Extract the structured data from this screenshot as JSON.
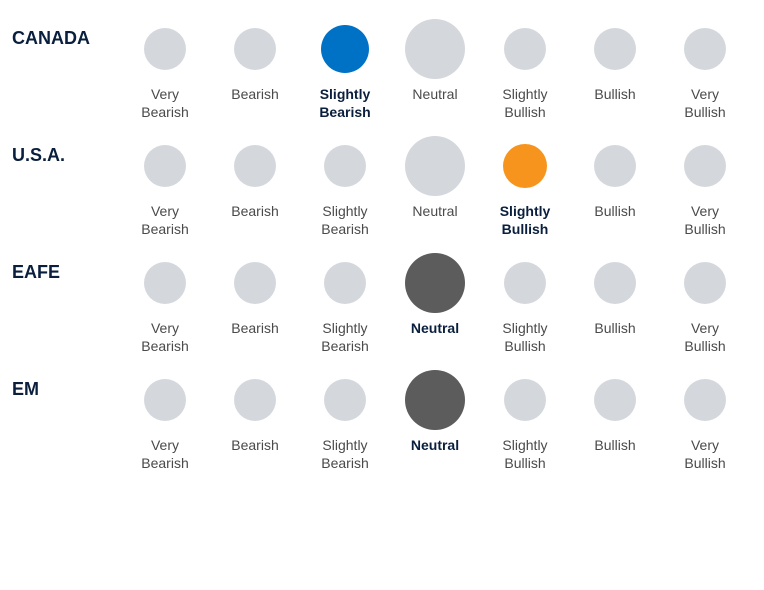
{
  "type": "dot-matrix-sentiment-chart",
  "colors": {
    "inactive": "#d4d8dd",
    "label_normal": "#4a4a4a",
    "label_selected": "#0a1f3d",
    "row_label": "#0a1f3d",
    "background": "#ffffff"
  },
  "dot_sizes": {
    "small": 42,
    "neutral_large": 60,
    "selected": 48,
    "selected_large": 60
  },
  "font_sizes": {
    "row_label": 18,
    "cell_label": 14
  },
  "columns": [
    {
      "key": "very_bearish",
      "label": "Very\nBearish",
      "size": "small"
    },
    {
      "key": "bearish",
      "label": "Bearish",
      "size": "small"
    },
    {
      "key": "slightly_bearish",
      "label": "Slightly\nBearish",
      "size": "small"
    },
    {
      "key": "neutral",
      "label": "Neutral",
      "size": "large"
    },
    {
      "key": "slightly_bullish",
      "label": "Slightly\nBullish",
      "size": "small"
    },
    {
      "key": "bullish",
      "label": "Bullish",
      "size": "small"
    },
    {
      "key": "very_bullish",
      "label": "Very\nBullish",
      "size": "small"
    }
  ],
  "rows": [
    {
      "label": "CANADA",
      "selected": "slightly_bearish",
      "selected_color": "#0072c6",
      "selected_size": 48
    },
    {
      "label": "U.S.A.",
      "selected": "slightly_bullish",
      "selected_color": "#f7941d",
      "selected_size": 44
    },
    {
      "label": "EAFE",
      "selected": "neutral",
      "selected_color": "#5c5c5c",
      "selected_size": 60
    },
    {
      "label": "EM",
      "selected": "neutral",
      "selected_color": "#5c5c5c",
      "selected_size": 60
    }
  ]
}
